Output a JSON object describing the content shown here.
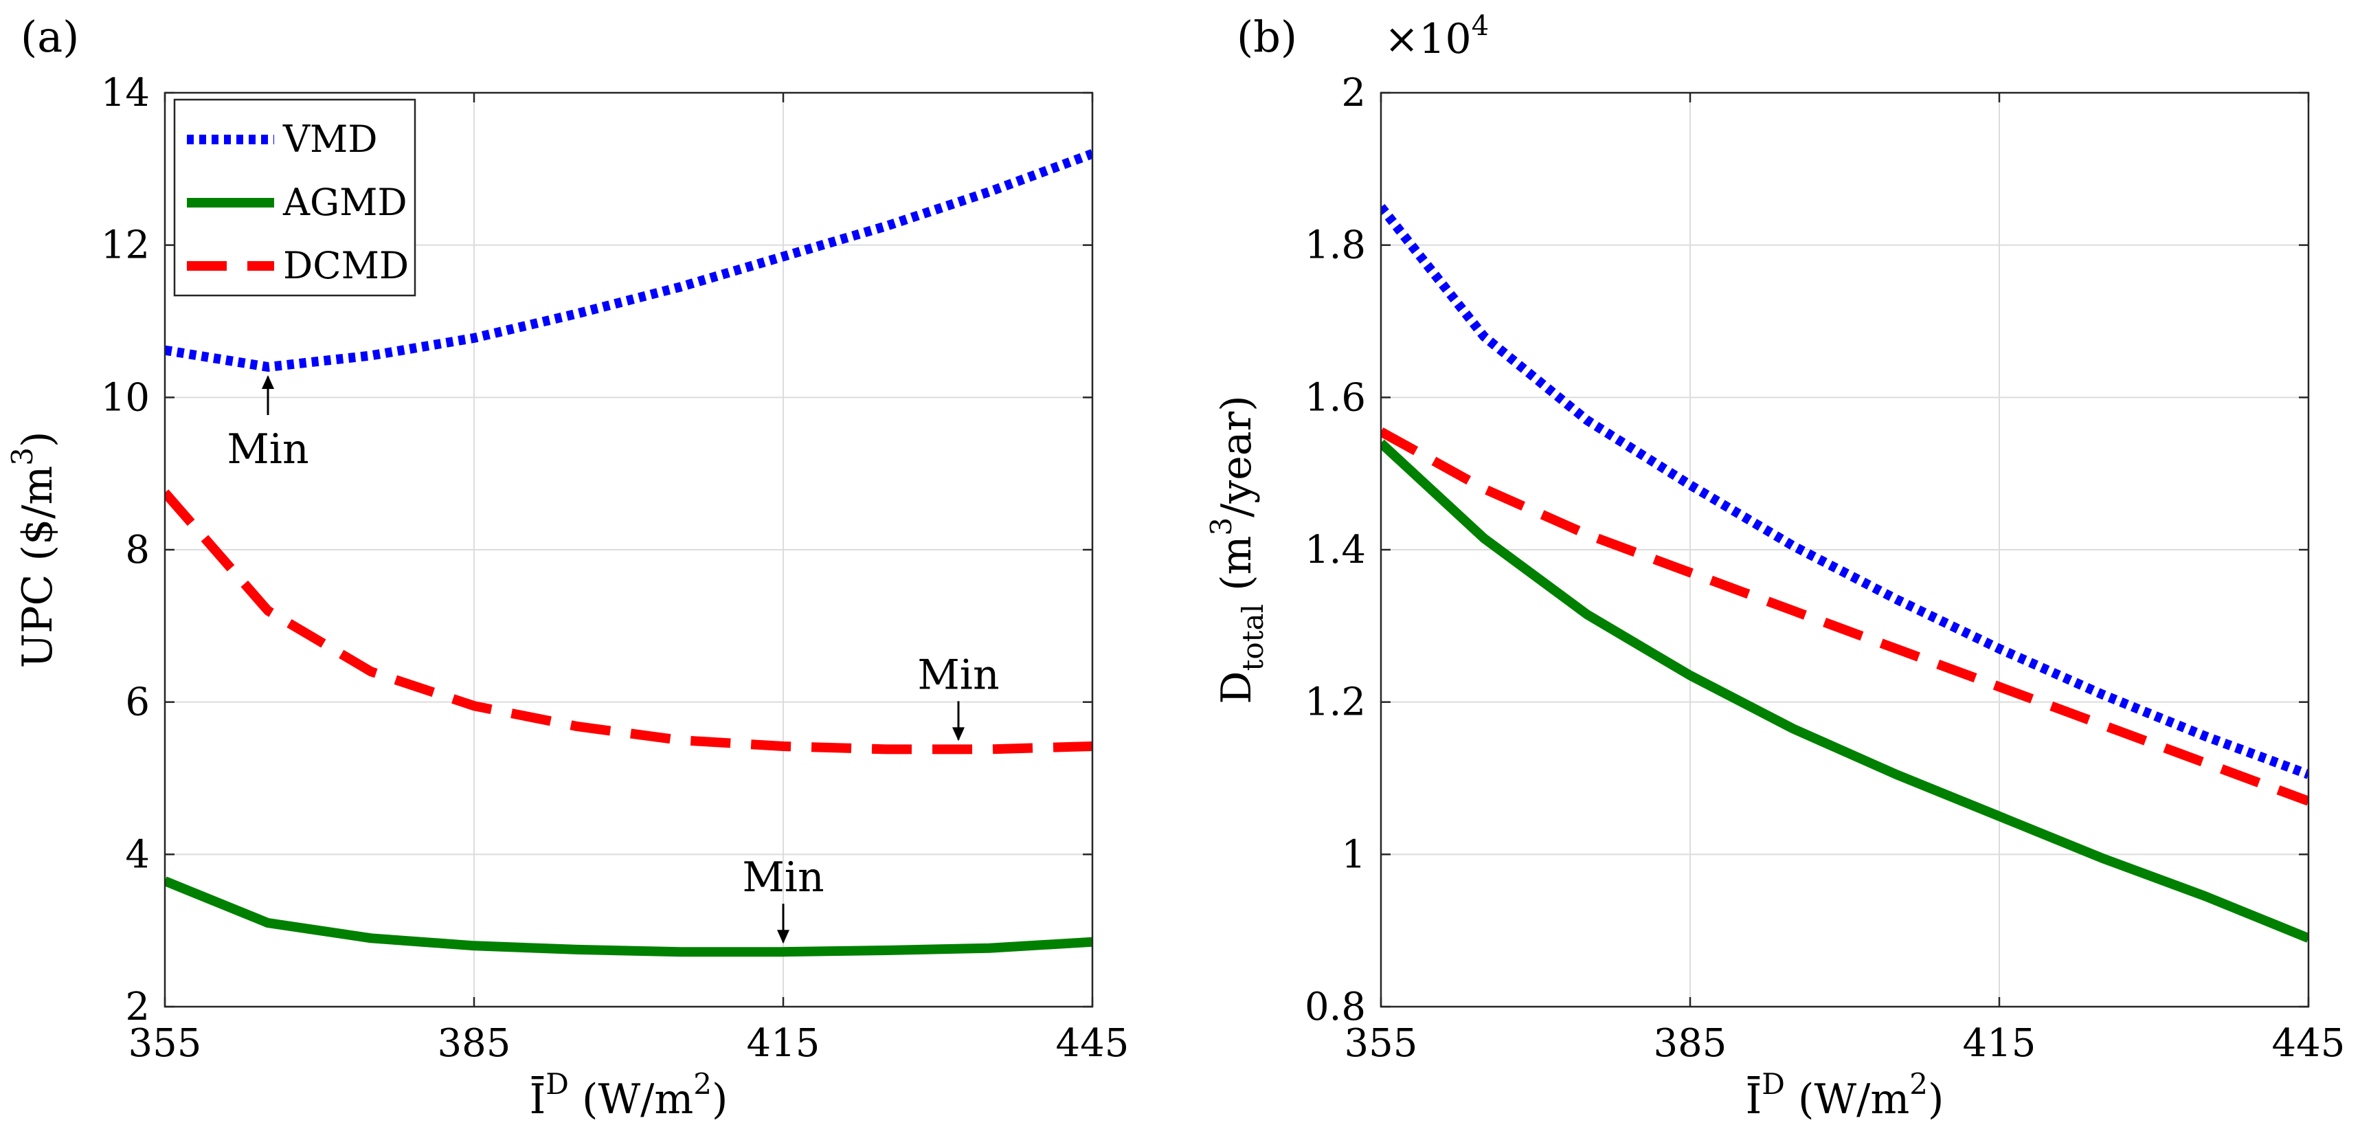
{
  "chart_data": [
    {
      "type": "line",
      "panel_label": "(a)",
      "xlabel": "Ī",
      "xlabel_sup": "D",
      "xlabel_unit_pre": " (W/m",
      "xlabel_unit_sup": "2",
      "xlabel_unit_post": ")",
      "ylabel": "UPC ($/m",
      "ylabel_sup": "3",
      "ylabel_post": ")",
      "xlim": [
        355,
        445
      ],
      "ylim": [
        2,
        14
      ],
      "xticks": [
        355,
        385,
        415,
        445
      ],
      "yticks": [
        2,
        4,
        6,
        8,
        10,
        12,
        14
      ],
      "grid": true,
      "legend_position": "top-left",
      "x": [
        355,
        365,
        375,
        385,
        395,
        405,
        415,
        425,
        435,
        445
      ],
      "series": [
        {
          "name": "VMD",
          "color": "#0000ff",
          "style": "dotted",
          "values": [
            10.62,
            10.4,
            10.55,
            10.78,
            11.1,
            11.45,
            11.85,
            12.25,
            12.7,
            13.2
          ]
        },
        {
          "name": "AGMD",
          "color": "#008000",
          "style": "solid",
          "values": [
            3.65,
            3.1,
            2.9,
            2.8,
            2.75,
            2.72,
            2.72,
            2.74,
            2.77,
            2.85
          ]
        },
        {
          "name": "DCMD",
          "color": "#ff0000",
          "style": "dashed",
          "values": [
            8.75,
            7.2,
            6.4,
            5.95,
            5.68,
            5.5,
            5.42,
            5.38,
            5.38,
            5.42
          ]
        }
      ],
      "annotations": [
        {
          "text": "Min",
          "x": 365,
          "y": 10.4,
          "placement": "below"
        },
        {
          "text": "Min",
          "x": 432,
          "y": 5.38,
          "placement": "above"
        },
        {
          "text": "Min",
          "x": 415,
          "y": 2.72,
          "placement": "above"
        }
      ]
    },
    {
      "type": "line",
      "panel_label": "(b)",
      "exponent_text": "×10",
      "exponent_sup": "4",
      "xlabel": "Ī",
      "xlabel_sup": "D",
      "xlabel_unit_pre": " (W/m",
      "xlabel_unit_sup": "2",
      "xlabel_unit_post": ")",
      "ylabel": "D",
      "ylabel_sub": "total",
      "ylabel_unit_pre": " (m",
      "ylabel_unit_sup": "3",
      "ylabel_unit_post": "/year)",
      "xlim": [
        355,
        445
      ],
      "ylim": [
        0.8,
        2
      ],
      "xticks": [
        355,
        385,
        415,
        445
      ],
      "yticks": [
        0.8,
        1,
        1.2,
        1.4,
        1.6,
        1.8,
        2
      ],
      "ytick_labels": [
        "0.8",
        "1",
        "1.2",
        "1.4",
        "1.6",
        "1.8",
        "2"
      ],
      "grid": true,
      "x": [
        355,
        365,
        375,
        385,
        395,
        405,
        415,
        425,
        435,
        445
      ],
      "series": [
        {
          "name": "VMD",
          "color": "#0000ff",
          "style": "dotted",
          "values": [
            1.85,
            1.68,
            1.57,
            1.485,
            1.405,
            1.335,
            1.27,
            1.21,
            1.155,
            1.105
          ]
        },
        {
          "name": "AGMD",
          "color": "#008000",
          "style": "solid",
          "values": [
            1.54,
            1.415,
            1.315,
            1.235,
            1.165,
            1.105,
            1.05,
            0.995,
            0.945,
            0.89
          ]
        },
        {
          "name": "DCMD",
          "color": "#ff0000",
          "style": "dashed",
          "values": [
            1.555,
            1.48,
            1.42,
            1.37,
            1.32,
            1.27,
            1.22,
            1.17,
            1.12,
            1.07
          ]
        }
      ]
    }
  ]
}
